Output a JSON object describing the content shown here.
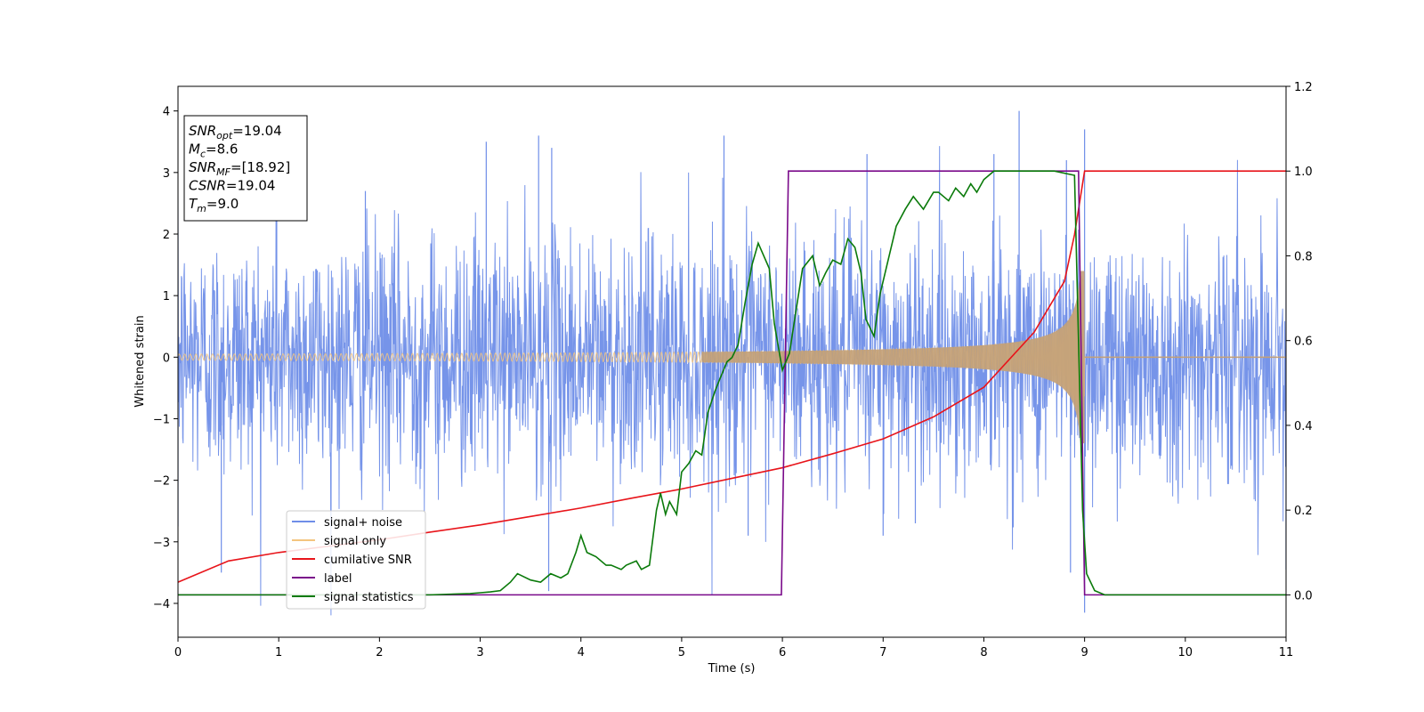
{
  "chart_data": {
    "type": "line",
    "xlabel": "Time (s)",
    "ylabel": "Whitened strain",
    "xlim": [
      0,
      11
    ],
    "ylim": [
      -4.55,
      4.4
    ],
    "y2lim": [
      -0.1,
      1.2
    ],
    "grid": false,
    "legend_position": "lower-left",
    "x_ticks": [
      0,
      1,
      2,
      3,
      4,
      5,
      6,
      7,
      8,
      9,
      10,
      11
    ],
    "y_ticks": [
      -4,
      -3,
      -2,
      -1,
      0,
      1,
      2,
      3,
      4
    ],
    "y2_ticks": [
      "0.0",
      "0.2",
      "0.4",
      "0.6",
      "0.8",
      "1.0",
      "1.2"
    ],
    "annotation": [
      {
        "sym": "SNR",
        "sub": "opt",
        "val": "=19.04"
      },
      {
        "sym": "M",
        "sub": "c",
        "val": "=8.6"
      },
      {
        "sym": "SNR",
        "sub": "MF",
        "val": "=[18.92]"
      },
      {
        "sym": "CSNR",
        "sub": "",
        "val": "=19.04"
      },
      {
        "sym": "T",
        "sub": "m",
        "val": "=9.0"
      }
    ],
    "series": [
      {
        "name": "signal+ noise",
        "color": "#6f8ee8",
        "axis": "left",
        "noise_sigma": 1.0,
        "extremes": [
          {
            "x": 0.0,
            "y": -2.75
          },
          {
            "x": 0.43,
            "y": -3.5
          },
          {
            "x": 0.98,
            "y": 2.6
          },
          {
            "x": 1.86,
            "y": 2.7
          },
          {
            "x": 3.06,
            "y": 3.5
          },
          {
            "x": 3.68,
            "y": -3.8
          },
          {
            "x": 3.71,
            "y": 3.4
          },
          {
            "x": 3.58,
            "y": 3.6
          },
          {
            "x": 5.42,
            "y": 3.6
          },
          {
            "x": 5.66,
            "y": -2.9
          },
          {
            "x": 6.84,
            "y": 3.3
          },
          {
            "x": 7.0,
            "y": -2.9
          },
          {
            "x": 7.32,
            "y": -2.7
          },
          {
            "x": 8.1,
            "y": 3.3
          },
          {
            "x": 8.35,
            "y": 4.0
          },
          {
            "x": 8.82,
            "y": 3.2
          },
          {
            "x": 8.86,
            "y": -3.5
          },
          {
            "x": 9.0,
            "y": -4.15
          },
          {
            "x": 9.0,
            "y": 3.7
          },
          {
            "x": 11.0,
            "y": -3.45
          }
        ]
      },
      {
        "name": "signal only",
        "color": "#f4c57f",
        "axis": "left",
        "chirp": {
          "t_merge": 9.0,
          "amp_start": 0.05,
          "amp_peak": 1.4,
          "freq_start": 18
        }
      },
      {
        "name": "cumilative SNR",
        "color": "#e8141a",
        "axis": "right",
        "x": [
          0,
          0.5,
          1,
          1.5,
          2,
          2.5,
          3,
          3.5,
          4,
          4.5,
          5,
          5.5,
          6,
          6.5,
          7,
          7.5,
          8,
          8.5,
          8.8,
          8.9,
          9.0,
          11
        ],
        "values": [
          0.03,
          0.08,
          0.1,
          0.115,
          0.13,
          0.148,
          0.165,
          0.185,
          0.205,
          0.228,
          0.25,
          0.275,
          0.3,
          0.333,
          0.368,
          0.42,
          0.49,
          0.62,
          0.74,
          0.85,
          1.0,
          1.0
        ]
      },
      {
        "name": "label",
        "color": "#7a0a8a",
        "axis": "right",
        "x": [
          0,
          5.99,
          6.06,
          8.94,
          9.0,
          11
        ],
        "values": [
          0,
          0,
          1,
          1,
          0,
          0
        ]
      },
      {
        "name": "signal statistics",
        "color": "#0a7a0a",
        "axis": "right",
        "x": [
          0,
          0.5,
          1,
          1.5,
          2,
          2.5,
          2.9,
          3.0,
          3.1,
          3.2,
          3.3,
          3.37,
          3.5,
          3.6,
          3.7,
          3.8,
          3.87,
          3.95,
          4.0,
          4.06,
          4.15,
          4.25,
          4.3,
          4.4,
          4.45,
          4.55,
          4.6,
          4.68,
          4.75,
          4.79,
          4.84,
          4.88,
          4.95,
          5.0,
          5.07,
          5.14,
          5.2,
          5.26,
          5.33,
          5.38,
          5.45,
          5.5,
          5.56,
          5.63,
          5.7,
          5.76,
          5.87,
          5.92,
          6.0,
          6.07,
          6.2,
          6.3,
          6.37,
          6.43,
          6.5,
          6.58,
          6.65,
          6.72,
          6.78,
          6.83,
          6.91,
          6.97,
          7.05,
          7.13,
          7.22,
          7.3,
          7.4,
          7.5,
          7.55,
          7.65,
          7.72,
          7.8,
          7.87,
          7.93,
          8.0,
          8.1,
          8.2,
          8.3,
          8.5,
          8.7,
          8.9,
          8.95,
          8.98,
          9.02,
          9.1,
          9.2,
          10,
          11
        ],
        "values": [
          0,
          0,
          0,
          0,
          0,
          0,
          0.003,
          0.005,
          0.007,
          0.01,
          0.03,
          0.05,
          0.035,
          0.03,
          0.05,
          0.04,
          0.05,
          0.1,
          0.14,
          0.1,
          0.09,
          0.07,
          0.07,
          0.06,
          0.07,
          0.08,
          0.06,
          0.07,
          0.2,
          0.24,
          0.19,
          0.22,
          0.19,
          0.29,
          0.31,
          0.34,
          0.33,
          0.43,
          0.48,
          0.51,
          0.55,
          0.56,
          0.59,
          0.69,
          0.78,
          0.83,
          0.77,
          0.64,
          0.53,
          0.57,
          0.77,
          0.8,
          0.73,
          0.76,
          0.79,
          0.78,
          0.84,
          0.82,
          0.76,
          0.65,
          0.61,
          0.71,
          0.79,
          0.87,
          0.91,
          0.94,
          0.91,
          0.95,
          0.95,
          0.93,
          0.96,
          0.94,
          0.97,
          0.95,
          0.98,
          1.0,
          1.0,
          1.0,
          1.0,
          1.0,
          0.99,
          0.5,
          0.2,
          0.05,
          0.01,
          0.0,
          0.0,
          0.0
        ]
      }
    ]
  }
}
